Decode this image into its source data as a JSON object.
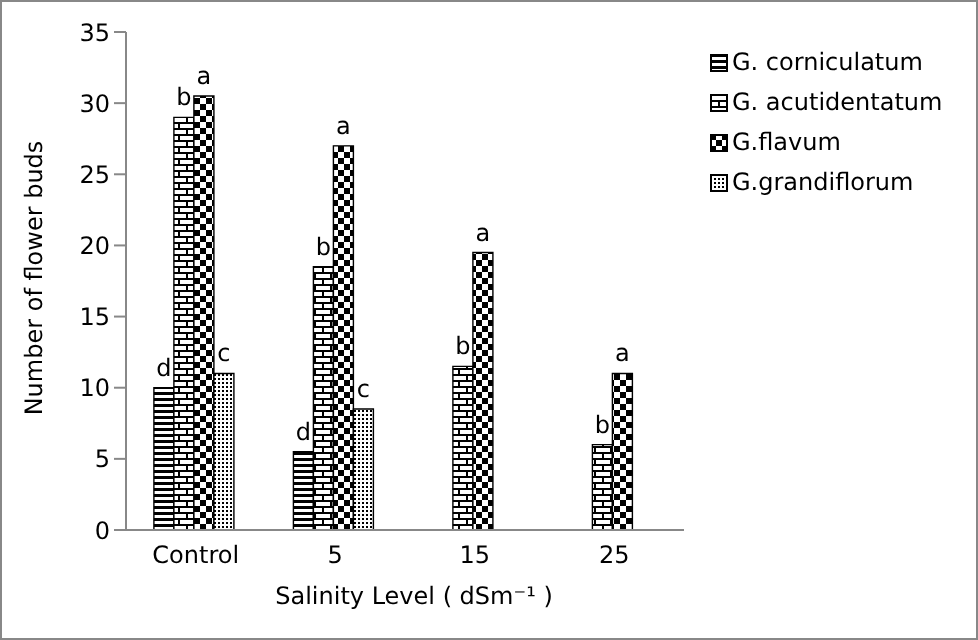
{
  "chart_data": {
    "type": "bar",
    "xlabel": "Salinity Level ( dSm⁻¹ )",
    "ylabel": "Number  of flower buds",
    "categories": [
      "Control",
      "5",
      "15",
      "25"
    ],
    "series": [
      {
        "name": "G. corniculatum",
        "color": "#000000",
        "values": [
          10,
          5.5,
          null,
          null
        ]
      },
      {
        "name": "G. acutidentatum",
        "color": "#000000",
        "values": [
          29,
          18.5,
          11.5,
          6
        ]
      },
      {
        "name": "G.flavum",
        "color": "#000000",
        "values": [
          30.5,
          27,
          19.5,
          11
        ]
      },
      {
        "name": "G.grandiflorum",
        "color": "#000000",
        "values": [
          11,
          8.5,
          null,
          null
        ]
      }
    ],
    "ylim": [
      0,
      35
    ],
    "yticks": [
      0,
      5,
      10,
      15,
      20,
      25,
      30,
      35
    ],
    "grid": false,
    "legend": "right",
    "annotations": [
      {
        "text": "d",
        "x": "Control",
        "y": 10
      },
      {
        "text": "b",
        "x": "Control",
        "y": 29
      },
      {
        "text": "a",
        "x": "Control",
        "y": 30.5
      },
      {
        "text": "c",
        "x": "Control",
        "y": 11
      },
      {
        "text": "d",
        "x": "5",
        "y": 5.5
      },
      {
        "text": "b",
        "x": "5",
        "y": 18.5
      },
      {
        "text": "a",
        "x": "5",
        "y": 27
      },
      {
        "text": "c",
        "x": "5",
        "y": 8.5
      },
      {
        "text": "b",
        "x": "15",
        "y": 11.5
      },
      {
        "text": "a",
        "x": "15",
        "y": 19.5
      },
      {
        "text": "b",
        "x": "25",
        "y": 6
      },
      {
        "text": "a",
        "x": "25",
        "y": 11
      }
    ]
  }
}
